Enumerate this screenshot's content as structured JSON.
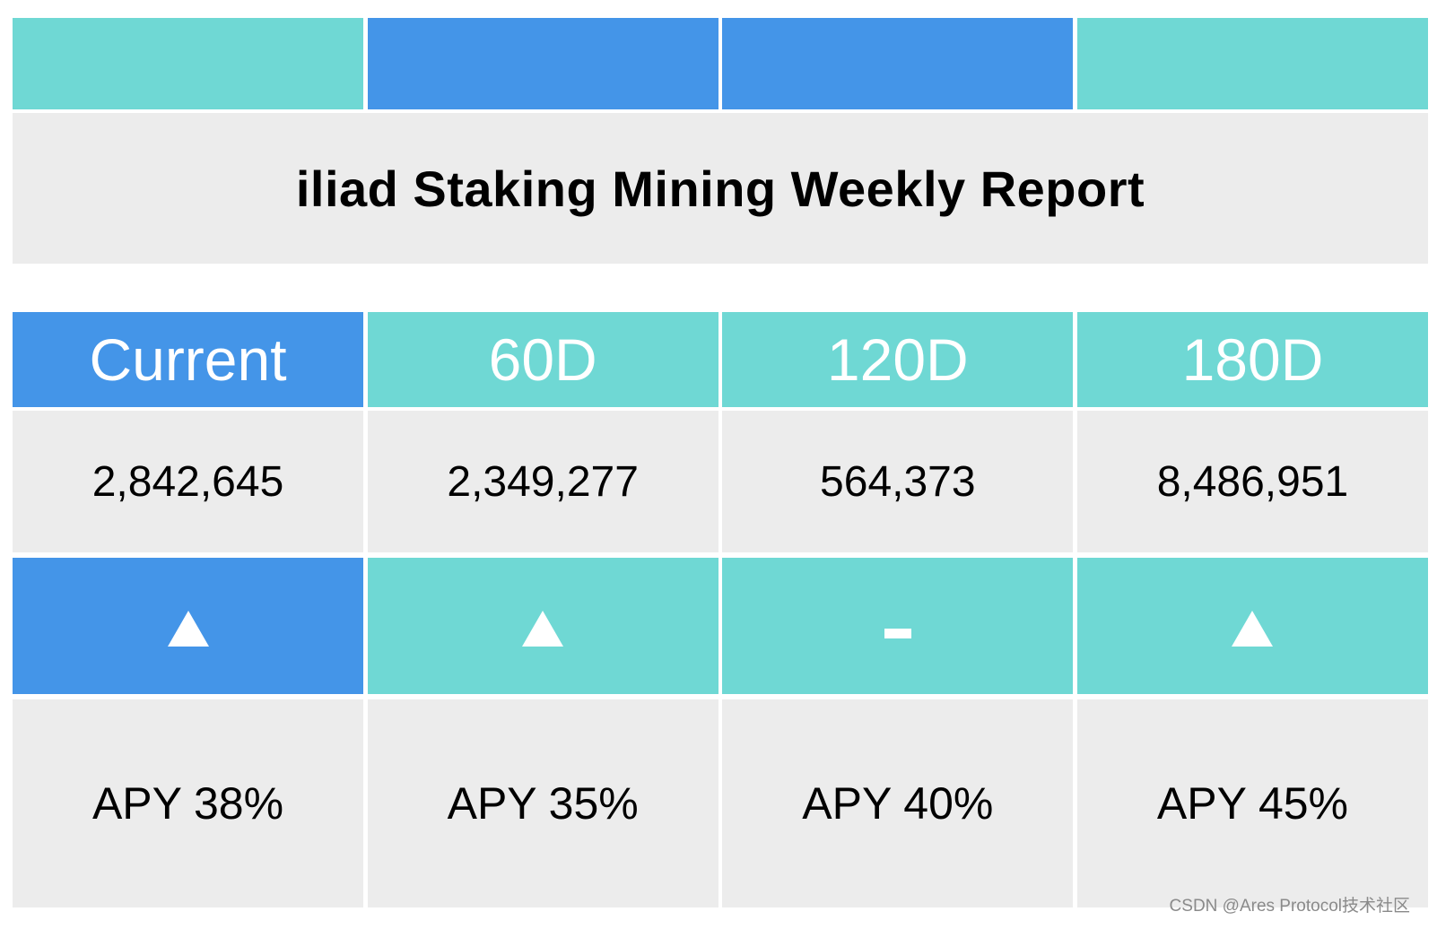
{
  "report": {
    "title": "iliad Staking Mining Weekly Report"
  },
  "colors": {
    "blue": "#4495e8",
    "teal": "#6fd8d4",
    "grey": "#ececec",
    "white": "#ffffff"
  },
  "top_bar": {
    "segment_colors": [
      "teal",
      "blue",
      "blue",
      "teal"
    ]
  },
  "columns": [
    {
      "header": "Current",
      "header_color": "blue",
      "value": "2,842,645",
      "trend": "up",
      "trend_symbol": "▲",
      "trend_color": "blue",
      "apy": "APY 38%"
    },
    {
      "header": "60D",
      "header_color": "teal",
      "value": "2,349,277",
      "trend": "up",
      "trend_symbol": "▲",
      "trend_color": "teal",
      "apy": "APY 35%"
    },
    {
      "header": "120D",
      "header_color": "teal",
      "value": "564,373",
      "trend": "flat",
      "trend_symbol": "-",
      "trend_color": "teal",
      "apy": "APY 40%"
    },
    {
      "header": "180D",
      "header_color": "teal",
      "value": "8,486,951",
      "trend": "up",
      "trend_symbol": "▲",
      "trend_color": "teal",
      "apy": "APY 45%"
    }
  ],
  "watermark": "CSDN @Ares Protocol技术社区"
}
